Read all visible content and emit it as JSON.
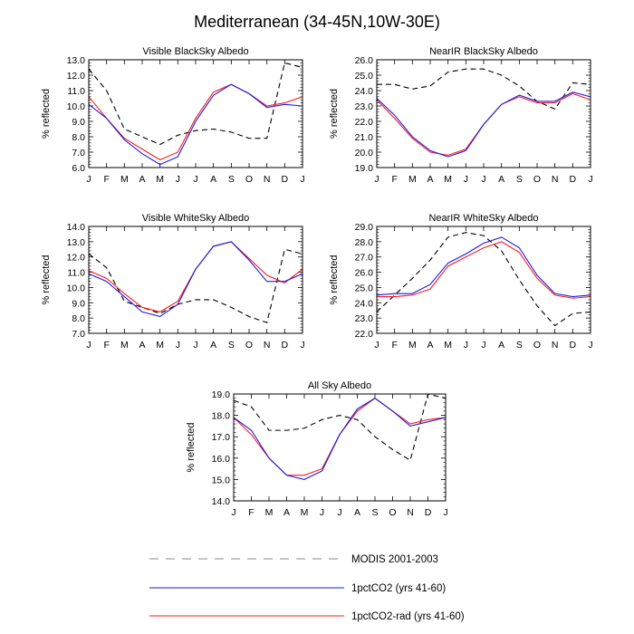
{
  "title": "Mediterranean (34-45N,10W-30E)",
  "colors": {
    "modis": "#000000",
    "pct": "#1a1ae6",
    "rad": "#ff1a1a",
    "legend_modis": "#888888"
  },
  "legend": [
    {
      "label": "MODIS 2001-2003",
      "style": "dashed",
      "color_key": "legend_modis"
    },
    {
      "label": "1pctCO2 (yrs 41-60)",
      "style": "solid",
      "color_key": "pct"
    },
    {
      "label": "1pctCO2-rad (yrs 41-60)",
      "style": "solid",
      "color_key": "rad"
    }
  ],
  "chart_data": [
    {
      "type": "line",
      "title": "Visible BlackSky Albedo",
      "ylabel": "% reflected",
      "categories": [
        "J",
        "F",
        "M",
        "A",
        "M",
        "J",
        "J",
        "A",
        "S",
        "O",
        "N",
        "D",
        "J"
      ],
      "ylim": [
        6.0,
        13.0
      ],
      "yticks": [
        "6.0",
        "7.0",
        "8.0",
        "9.0",
        "10.0",
        "11.0",
        "12.0",
        "13.0"
      ],
      "series": [
        {
          "name": "MODIS 2001-2003",
          "style": "dashed",
          "color_key": "modis",
          "values": [
            12.4,
            11.0,
            8.5,
            8.0,
            7.5,
            8.1,
            8.4,
            8.5,
            8.3,
            7.9,
            7.9,
            12.8,
            12.5
          ]
        },
        {
          "name": "1pctCO2 (yrs 41-60)",
          "style": "solid",
          "color_key": "pct",
          "values": [
            10.1,
            9.2,
            7.8,
            6.9,
            6.2,
            6.7,
            9.0,
            10.7,
            11.4,
            10.8,
            9.9,
            10.1,
            10.0
          ]
        },
        {
          "name": "1pctCO2-rad (yrs 41-60)",
          "style": "solid",
          "color_key": "rad",
          "values": [
            10.6,
            9.2,
            7.9,
            7.2,
            6.5,
            7.0,
            9.2,
            10.9,
            11.4,
            10.8,
            10.0,
            10.2,
            10.6
          ]
        }
      ]
    },
    {
      "type": "line",
      "title": "NearIR BlackSky Albedo",
      "ylabel": "% reflected",
      "categories": [
        "J",
        "F",
        "M",
        "A",
        "M",
        "J",
        "J",
        "A",
        "S",
        "O",
        "N",
        "D",
        "J"
      ],
      "ylim": [
        19.0,
        26.0
      ],
      "yticks": [
        "19.0",
        "20.0",
        "21.0",
        "22.0",
        "23.0",
        "24.0",
        "25.0",
        "26.0"
      ],
      "series": [
        {
          "name": "MODIS 2001-2003",
          "style": "dashed",
          "color_key": "modis",
          "values": [
            24.4,
            24.4,
            24.1,
            24.3,
            25.2,
            25.4,
            25.4,
            25.0,
            24.3,
            23.3,
            22.8,
            24.5,
            24.4
          ]
        },
        {
          "name": "1pctCO2 (yrs 41-60)",
          "style": "solid",
          "color_key": "pct",
          "values": [
            23.5,
            22.4,
            21.0,
            20.1,
            19.7,
            20.1,
            21.8,
            23.1,
            23.7,
            23.3,
            23.3,
            23.9,
            23.6
          ]
        },
        {
          "name": "1pctCO2-rad (yrs 41-60)",
          "style": "solid",
          "color_key": "rad",
          "values": [
            23.4,
            22.2,
            20.9,
            20.0,
            19.8,
            20.2,
            21.8,
            23.1,
            23.6,
            23.2,
            23.2,
            23.8,
            23.4
          ]
        }
      ]
    },
    {
      "type": "line",
      "title": "Visible WhiteSky Albedo",
      "ylabel": "% reflected",
      "categories": [
        "J",
        "F",
        "M",
        "A",
        "M",
        "J",
        "J",
        "A",
        "S",
        "O",
        "N",
        "D",
        "J"
      ],
      "ylim": [
        7.0,
        14.0
      ],
      "yticks": [
        "7.0",
        "8.0",
        "9.0",
        "10.0",
        "11.0",
        "12.0",
        "13.0",
        "14.0"
      ],
      "series": [
        {
          "name": "MODIS 2001-2003",
          "style": "dashed",
          "color_key": "modis",
          "values": [
            12.2,
            11.3,
            9.1,
            8.7,
            8.3,
            8.9,
            9.2,
            9.2,
            8.7,
            8.1,
            7.7,
            12.5,
            12.2
          ]
        },
        {
          "name": "1pctCO2 (yrs 41-60)",
          "style": "solid",
          "color_key": "pct",
          "values": [
            10.9,
            10.4,
            9.4,
            8.4,
            8.1,
            8.9,
            11.2,
            12.7,
            13.0,
            11.8,
            10.4,
            10.4,
            10.9
          ]
        },
        {
          "name": "1pctCO2-rad (yrs 41-60)",
          "style": "solid",
          "color_key": "rad",
          "values": [
            11.1,
            10.6,
            9.6,
            8.7,
            8.4,
            9.1,
            11.2,
            12.7,
            13.0,
            11.9,
            10.8,
            10.3,
            11.2
          ]
        }
      ]
    },
    {
      "type": "line",
      "title": "NearIR WhiteSky Albedo",
      "ylabel": "% reflected",
      "categories": [
        "J",
        "F",
        "M",
        "A",
        "M",
        "J",
        "J",
        "A",
        "S",
        "O",
        "N",
        "D",
        "J"
      ],
      "ylim": [
        22.0,
        29.0
      ],
      "yticks": [
        "22.0",
        "23.0",
        "24.0",
        "25.0",
        "26.0",
        "27.0",
        "28.0",
        "29.0"
      ],
      "series": [
        {
          "name": "MODIS 2001-2003",
          "style": "dashed",
          "color_key": "modis",
          "values": [
            23.4,
            24.5,
            25.6,
            26.8,
            28.3,
            28.6,
            28.4,
            27.4,
            25.5,
            23.8,
            22.5,
            23.3,
            23.4
          ]
        },
        {
          "name": "1pctCO2 (yrs 41-60)",
          "style": "solid",
          "color_key": "pct",
          "values": [
            24.5,
            24.6,
            24.6,
            25.2,
            26.6,
            27.2,
            27.9,
            28.3,
            27.6,
            25.8,
            24.6,
            24.4,
            24.5
          ]
        },
        {
          "name": "1pctCO2-rad (yrs 41-60)",
          "style": "solid",
          "color_key": "rad",
          "values": [
            24.4,
            24.4,
            24.5,
            24.9,
            26.4,
            27.0,
            27.6,
            28.0,
            27.3,
            25.6,
            24.5,
            24.3,
            24.4
          ]
        }
      ]
    },
    {
      "type": "line",
      "title": "All Sky Albedo",
      "ylabel": "% reflected",
      "categories": [
        "J",
        "F",
        "M",
        "A",
        "M",
        "J",
        "J",
        "A",
        "S",
        "O",
        "N",
        "D",
        "J"
      ],
      "ylim": [
        14.0,
        19.0
      ],
      "yticks": [
        "14.0",
        "15.0",
        "16.0",
        "17.0",
        "18.0",
        "19.0"
      ],
      "series": [
        {
          "name": "MODIS 2001-2003",
          "style": "dashed",
          "color_key": "modis",
          "values": [
            18.7,
            18.4,
            17.3,
            17.3,
            17.4,
            17.8,
            18.0,
            17.8,
            17.0,
            16.4,
            15.9,
            19.0,
            18.8
          ]
        },
        {
          "name": "1pctCO2 (yrs 41-60)",
          "style": "solid",
          "color_key": "pct",
          "values": [
            17.9,
            17.3,
            16.0,
            15.2,
            15.0,
            15.4,
            17.1,
            18.3,
            18.8,
            18.2,
            17.5,
            17.7,
            17.9
          ]
        },
        {
          "name": "1pctCO2-rad (yrs 41-60)",
          "style": "solid",
          "color_key": "rad",
          "values": [
            17.9,
            17.1,
            16.0,
            15.2,
            15.2,
            15.5,
            17.1,
            18.2,
            18.8,
            18.2,
            17.6,
            17.8,
            17.9
          ]
        }
      ]
    }
  ]
}
